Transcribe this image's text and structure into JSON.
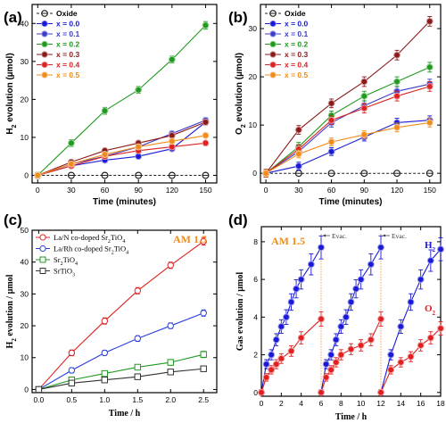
{
  "chart_data": [
    {
      "id": "a",
      "type": "line",
      "panel_label": "(a)",
      "xlabel": "Time (minutes)",
      "ylabel": "H2 evolution (µmol)",
      "ylabel_main": "H",
      "ylabel_sub": "2",
      "ylabel_rest": " evolution (µmol)",
      "xlim": [
        -5,
        160
      ],
      "ylim": [
        -2,
        45
      ],
      "xticks": [
        0,
        30,
        60,
        90,
        120,
        150
      ],
      "yticks": [
        0,
        10,
        20,
        30,
        40
      ],
      "x": [
        0,
        30,
        60,
        90,
        120,
        150
      ],
      "legend_position": "top-left",
      "series": [
        {
          "name": "Oxide",
          "color": "#222222",
          "values": [
            0,
            0,
            0,
            0,
            0,
            0
          ],
          "errors": [
            0.3,
            0.3,
            0.3,
            0.3,
            0.3,
            0.3
          ]
        },
        {
          "name": "x = 0.0",
          "color": "#1a1ad6",
          "values": [
            0,
            2.5,
            4,
            5,
            7,
            14
          ],
          "errors": [
            0.5,
            0.6,
            0.6,
            0.6,
            0.6,
            0.7
          ]
        },
        {
          "name": "x = 0.1",
          "color": "#3b3bcc",
          "values": [
            0,
            3,
            5,
            7.5,
            11,
            14.5
          ],
          "errors": [
            0.5,
            0.6,
            0.6,
            0.6,
            0.6,
            0.7
          ]
        },
        {
          "name": "x = 0.2",
          "color": "#1f9a1f",
          "values": [
            0,
            8.5,
            17,
            22.5,
            30.5,
            39.5
          ],
          "errors": [
            0.8,
            0.9,
            0.9,
            0.9,
            0.9,
            1.0
          ]
        },
        {
          "name": "x = 0.3",
          "color": "#8b1a1a",
          "values": [
            0,
            3.5,
            6.5,
            8.5,
            10.5,
            14
          ],
          "errors": [
            0.5,
            0.6,
            0.6,
            0.6,
            0.6,
            0.7
          ]
        },
        {
          "name": "x = 0.4",
          "color": "#dd2222",
          "values": [
            0,
            2.5,
            5,
            6.5,
            7.5,
            8.5
          ],
          "errors": [
            0.5,
            0.6,
            0.6,
            0.6,
            0.6,
            0.6
          ]
        },
        {
          "name": "x = 0.5",
          "color": "#f08c1a",
          "values": [
            0,
            3,
            5.5,
            7.5,
            9,
            10.5
          ],
          "errors": [
            0.5,
            0.6,
            0.6,
            0.6,
            0.6,
            0.6
          ]
        }
      ]
    },
    {
      "id": "b",
      "type": "line",
      "panel_label": "(b)",
      "xlabel": "Time (minutes)",
      "ylabel": "O2 evolution (µmol)",
      "ylabel_main": "O",
      "ylabel_sub": "2",
      "ylabel_rest": " evolution (µmol)",
      "xlim": [
        -5,
        160
      ],
      "ylim": [
        -2,
        35
      ],
      "xticks": [
        0,
        30,
        60,
        90,
        120,
        150
      ],
      "yticks": [
        0,
        10,
        20,
        30
      ],
      "x": [
        0,
        30,
        60,
        90,
        120,
        150
      ],
      "legend_position": "top-left",
      "series": [
        {
          "name": "Oxide",
          "color": "#222222",
          "values": [
            0,
            0,
            0,
            0,
            0,
            0
          ],
          "errors": [
            0.4,
            0.4,
            0.4,
            0.4,
            0.4,
            0.4
          ]
        },
        {
          "name": "x = 0.0",
          "color": "#1a1ad6",
          "values": [
            0,
            1.5,
            4.5,
            7.5,
            10.5,
            11
          ],
          "errors": [
            0.7,
            0.8,
            0.8,
            0.8,
            0.9,
            0.9
          ]
        },
        {
          "name": "x = 0.1",
          "color": "#3b3bcc",
          "values": [
            0,
            4.5,
            10.5,
            14,
            17,
            18.5
          ],
          "errors": [
            0.8,
            0.9,
            0.9,
            1.0,
            1.0,
            1.0
          ]
        },
        {
          "name": "x = 0.2",
          "color": "#1f9a1f",
          "values": [
            0,
            5.5,
            12,
            16,
            19,
            22
          ],
          "errors": [
            0.8,
            0.9,
            0.9,
            1.0,
            1.0,
            1.0
          ]
        },
        {
          "name": "x = 0.3",
          "color": "#8b1a1a",
          "values": [
            0,
            9,
            14.5,
            19,
            24.5,
            31.5
          ],
          "errors": [
            0.8,
            0.9,
            0.9,
            1.0,
            1.0,
            1.0
          ]
        },
        {
          "name": "x = 0.4",
          "color": "#dd2222",
          "values": [
            0,
            5,
            11,
            13.5,
            16,
            18
          ],
          "errors": [
            0.8,
            0.9,
            0.9,
            1.0,
            1.0,
            1.0
          ]
        },
        {
          "name": "x = 0.5",
          "color": "#f08c1a",
          "values": [
            0,
            4,
            6.5,
            8,
            9.5,
            10.5
          ],
          "errors": [
            0.7,
            0.8,
            0.8,
            0.8,
            0.9,
            0.9
          ]
        }
      ]
    },
    {
      "id": "c",
      "type": "line",
      "panel_label": "(c)",
      "xlabel": "Time / h",
      "ylabel": "H2 evolution / µmol",
      "ylabel_main": "H",
      "ylabel_sub": "2",
      "ylabel_rest": " evolution / µmol",
      "xlim": [
        -0.1,
        2.7
      ],
      "ylim": [
        -1,
        50
      ],
      "xticks": [
        0.0,
        0.5,
        1.0,
        1.5,
        2.0,
        2.5
      ],
      "xtick_labels": [
        "0.0",
        "0.5",
        "1.0",
        "1.5",
        "2.0",
        "2.5"
      ],
      "yticks": [
        0,
        10,
        20,
        30,
        40,
        50
      ],
      "x": [
        0,
        0.5,
        1.0,
        1.5,
        2.0,
        2.5
      ],
      "legend_position": "top-left",
      "annotation": "AM 1.5",
      "annotation_color": "#f08c1a",
      "series": [
        {
          "name": "La/N co-doped Sr2TiO4",
          "legend_main": "La/N co-doped Sr",
          "legend_sub1": "2",
          "legend_mid": "TiO",
          "legend_sub2": "4",
          "color": "#e02020",
          "marker": "circle",
          "values": [
            0,
            11.5,
            21.5,
            31,
            39,
            46.5
          ],
          "errors": [
            0.8,
            0.9,
            1.0,
            1.0,
            1.0,
            1.2
          ]
        },
        {
          "name": "La/Rh co-doped Sr2TiO4",
          "legend_main": "La/Rh co-doped Sr",
          "legend_sub1": "2",
          "legend_mid": "TiO",
          "legend_sub2": "4",
          "color": "#2a3fd8",
          "marker": "circle",
          "values": [
            0,
            6,
            11.5,
            16,
            20,
            24
          ],
          "errors": [
            0.7,
            0.8,
            0.8,
            0.9,
            0.9,
            1.0
          ]
        },
        {
          "name": "Sr2TiO4",
          "legend_main": "Sr",
          "legend_sub1": "2",
          "legend_mid": "TiO",
          "legend_sub2": "4",
          "color": "#1f9a1f",
          "marker": "square",
          "values": [
            0,
            3,
            5,
            7,
            8.5,
            11
          ],
          "errors": [
            0.6,
            0.7,
            0.8,
            0.8,
            0.9,
            1.0
          ]
        },
        {
          "name": "SrTiO3",
          "legend_main": "SrTiO",
          "legend_sub1": "3",
          "legend_mid": "",
          "legend_sub2": "",
          "color": "#333333",
          "marker": "square",
          "values": [
            0,
            2,
            3,
            4,
            5.5,
            6.5
          ],
          "errors": [
            0.5,
            0.6,
            0.6,
            0.7,
            0.7,
            0.8
          ]
        }
      ]
    },
    {
      "id": "d",
      "type": "line",
      "panel_label": "(d)",
      "xlabel": "Time / h",
      "ylabel": "Gas evolution / µmol",
      "xlim": [
        0,
        18
      ],
      "ylim": [
        -0.2,
        8.8
      ],
      "xticks": [
        0,
        2,
        4,
        6,
        8,
        10,
        12,
        14,
        16,
        18
      ],
      "yticks": [
        0,
        2,
        4,
        6,
        8
      ],
      "annotation": "AM 1.5",
      "annotation_color": "#f08c1a",
      "evac_label": "Evac.",
      "evac_times": [
        6,
        12
      ],
      "series": [
        {
          "name": "H2",
          "label_main": "H",
          "label_sub": "2",
          "color": "#1a1ad6",
          "cycles": [
            {
              "x": [
                0,
                0.5,
                1,
                1.5,
                2,
                2.5,
                3,
                3.5,
                4,
                5,
                6
              ],
              "y": [
                0,
                1.5,
                2,
                2.8,
                3.5,
                4,
                4.8,
                5.5,
                6,
                6.8,
                7.7
              ]
            },
            {
              "x": [
                6,
                6.5,
                7,
                7.5,
                8,
                8.5,
                9,
                9.5,
                10,
                11,
                12
              ],
              "y": [
                0,
                1.5,
                2,
                2.8,
                3.5,
                4,
                4.8,
                5.5,
                6,
                6.8,
                7.7
              ]
            },
            {
              "x": [
                12,
                13,
                14,
                15,
                16,
                17,
                18
              ],
              "y": [
                0,
                2,
                3.5,
                4.8,
                6,
                7,
                7.6
              ]
            }
          ]
        },
        {
          "name": "O2",
          "label_main": "O",
          "label_sub": "2",
          "color": "#e02020",
          "cycles": [
            {
              "x": [
                0,
                0.5,
                1,
                1.5,
                2,
                3,
                4,
                6
              ],
              "y": [
                0,
                0.8,
                1.2,
                1.5,
                1.8,
                2.2,
                2.9,
                3.9
              ]
            },
            {
              "x": [
                6,
                6.5,
                7,
                7.5,
                8,
                9,
                10,
                11,
                12
              ],
              "y": [
                0,
                0.8,
                1.2,
                1.6,
                2,
                2.3,
                2.5,
                2.8,
                3.9
              ]
            },
            {
              "x": [
                12,
                13,
                14,
                15,
                16,
                17,
                18
              ],
              "y": [
                0,
                1.2,
                1.6,
                1.9,
                2.5,
                2.9,
                3.4
              ]
            }
          ]
        }
      ]
    }
  ]
}
